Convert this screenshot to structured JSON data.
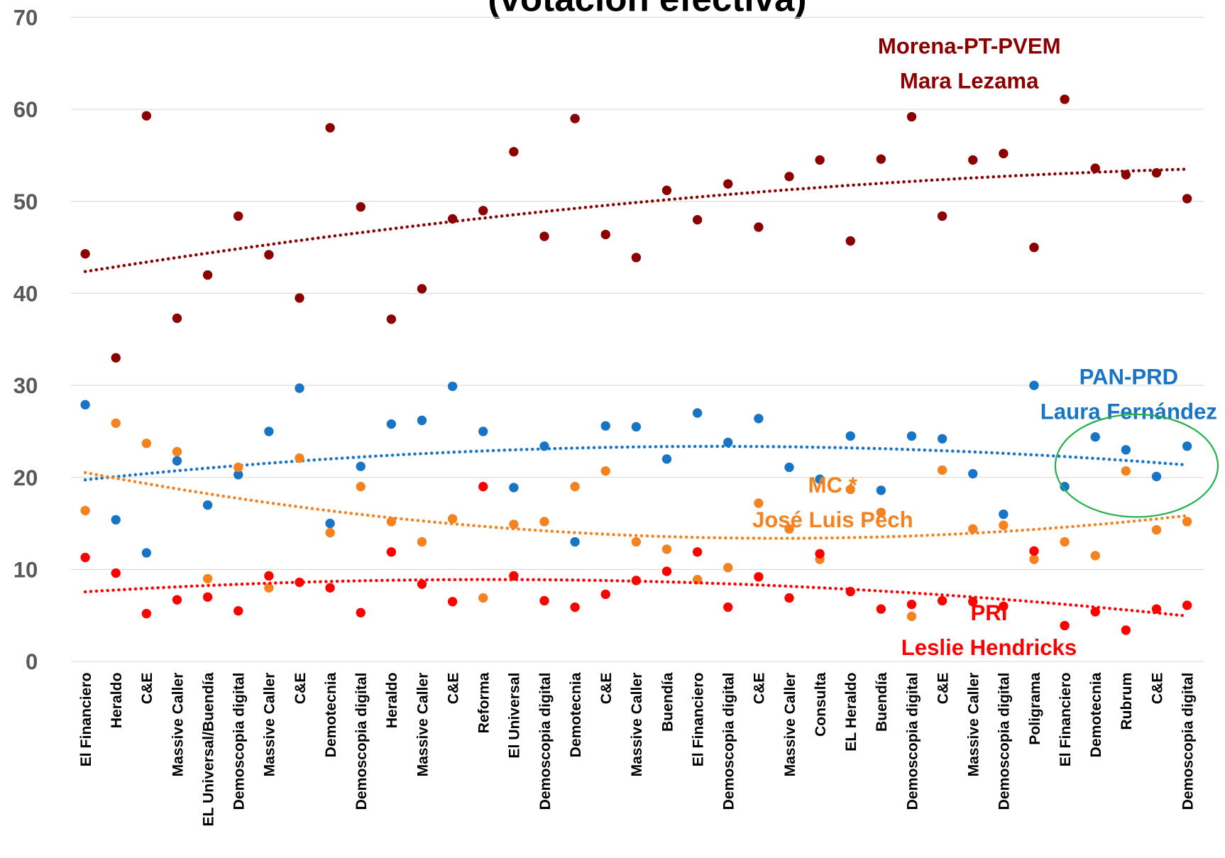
{
  "chart_data": {
    "type": "scatter",
    "title": "(votación efectiva)",
    "categories": [
      "El Financiero",
      "Heraldo",
      "C&E",
      "Massive Caller",
      "EL Universal/Buendía",
      "Demoscopia digital",
      "Massive Caller",
      "C&E",
      "Demotecnia",
      "Demoscopia digital",
      "Heraldo",
      "Massive Caller",
      "C&E",
      "Reforma",
      "El Universal",
      "Demoscopia digital",
      "Demotecnia",
      "C&E",
      "Massive Caller",
      "Buendía",
      "El Financiero",
      "Demoscopia digital",
      "C&E",
      "Massive Caller",
      "Consulta",
      "EL Heraldo",
      "Buendía",
      "Demoscopia digital",
      "C&E",
      "Massive Caller",
      "Demoscopia digital",
      "Poligrama",
      "El Financiero",
      "Demotecnia",
      "Rubrum",
      "C&E",
      "Demoscopia digital"
    ],
    "ylim": [
      0,
      70
    ],
    "yticks": [
      0,
      10,
      20,
      30,
      40,
      50,
      60,
      70
    ],
    "grid": true,
    "trendline": true,
    "series": [
      {
        "color": "#8b0000",
        "label_lines": [
          "Morena-PT-PVEM",
          "Mara Lezama"
        ],
        "values": [
          44.3,
          33.0,
          59.3,
          37.3,
          42.0,
          48.4,
          44.2,
          39.5,
          58.0,
          49.4,
          37.2,
          40.5,
          48.1,
          49.0,
          55.4,
          46.2,
          59.0,
          46.4,
          43.9,
          51.2,
          48.0,
          51.9,
          47.2,
          52.7,
          54.5,
          45.7,
          54.6,
          59.2,
          48.4,
          54.5,
          55.2,
          45.0,
          61.1,
          53.6,
          52.9,
          53.1,
          50.3
        ]
      },
      {
        "color": "#1874c4",
        "label_lines": [
          "PAN-PRD",
          "Laura Fernández"
        ],
        "values": [
          27.9,
          15.4,
          11.8,
          21.8,
          17.0,
          20.3,
          25.0,
          29.7,
          15.0,
          21.2,
          25.8,
          26.2,
          29.9,
          25.0,
          18.9,
          23.4,
          13.0,
          25.6,
          25.5,
          22.0,
          27.0,
          23.8,
          26.4,
          21.1,
          19.8,
          24.5,
          18.6,
          24.5,
          24.2,
          20.4,
          16.0,
          30.0,
          19.0,
          24.4,
          23.0,
          20.1,
          23.4
        ]
      },
      {
        "color": "#f58220",
        "label_lines": [
          "MC *",
          "José Luis Pech"
        ],
        "values": [
          16.4,
          25.9,
          23.7,
          22.8,
          9.0,
          21.1,
          8.0,
          22.1,
          14.0,
          19.0,
          15.2,
          13.0,
          15.5,
          6.9,
          14.9,
          15.2,
          19.0,
          20.7,
          13.0,
          12.2,
          8.9,
          10.2,
          17.2,
          14.4,
          11.1,
          18.7,
          16.2,
          4.9,
          20.8,
          14.4,
          14.8,
          11.1,
          13.0,
          11.5,
          20.7,
          14.3,
          15.2
        ]
      },
      {
        "color": "#ff0000",
        "label_lines": [
          "PRI",
          "Leslie Hendricks"
        ],
        "values": [
          11.3,
          9.6,
          5.2,
          6.7,
          7.0,
          5.5,
          9.3,
          8.6,
          8.0,
          5.3,
          11.9,
          8.4,
          6.5,
          19.0,
          9.3,
          6.6,
          5.9,
          7.3,
          8.8,
          9.8,
          11.9,
          5.9,
          9.2,
          6.9,
          11.7,
          7.6,
          5.7,
          6.2,
          6.6,
          6.5,
          6.0,
          12.0,
          3.9,
          5.4,
          3.4,
          5.7,
          6.1
        ]
      }
    ]
  }
}
